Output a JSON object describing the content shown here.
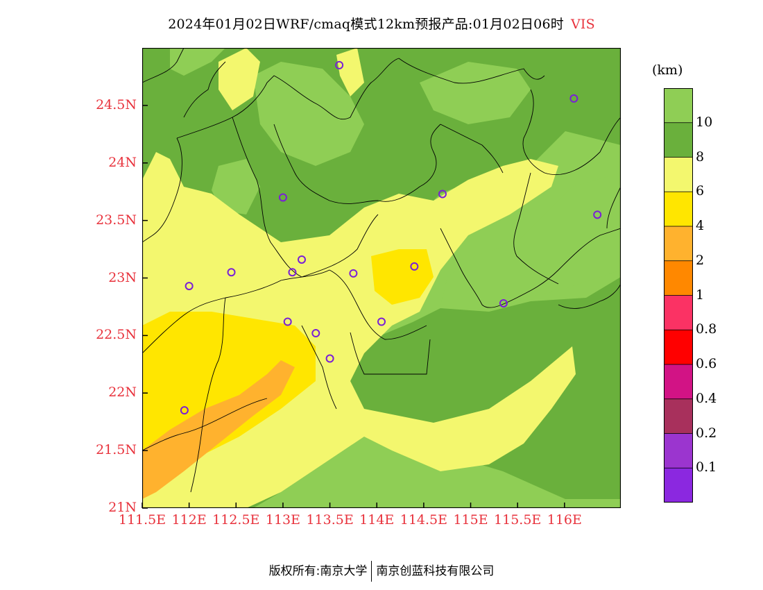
{
  "title": {
    "main": "2024年01月02日WRF/cmaq模式12km预报产品:01月02日06时",
    "variable": "VIS"
  },
  "axes": {
    "x_ticks": [
      "111.5E",
      "112E",
      "112.5E",
      "113E",
      "113.5E",
      "114E",
      "114.5E",
      "115E",
      "115.5E",
      "116E"
    ],
    "y_ticks": [
      "21N",
      "21.5N",
      "22N",
      "22.5N",
      "23N",
      "23.5N",
      "24N",
      "24.5N"
    ],
    "x_range": [
      111.5,
      116.6
    ],
    "y_range": [
      21.0,
      25.0
    ]
  },
  "legend": {
    "unit": "(km)",
    "labels": [
      "10",
      "8",
      "6",
      "4",
      "2",
      "1",
      "0.8",
      "0.6",
      "0.4",
      "0.2",
      "0.1"
    ],
    "colors": [
      "#8fce55",
      "#6ab03c",
      "#f3f76e",
      "#ffe600",
      "#ffb22e",
      "#ff8800",
      "#fb3264",
      "#ff0000",
      "#d21385",
      "#a8305c",
      "#9b35cf",
      "#8b28e0"
    ]
  },
  "map": {
    "colors": {
      "vis_gt10": "#8fce55",
      "vis_8_10": "#6ab03c",
      "vis_6_8": "#f3f76e",
      "vis_4_6": "#ffe600",
      "vis_2_4": "#ffb22e",
      "station_marker": "#7a1fd6",
      "boundary": "#000000"
    },
    "stations": [
      {
        "lon": 113.6,
        "lat": 24.85
      },
      {
        "lon": 116.1,
        "lat": 24.56
      },
      {
        "lon": 113.0,
        "lat": 23.7
      },
      {
        "lon": 114.7,
        "lat": 23.73
      },
      {
        "lon": 116.35,
        "lat": 23.55
      },
      {
        "lon": 112.45,
        "lat": 23.05
      },
      {
        "lon": 112.0,
        "lat": 22.93
      },
      {
        "lon": 113.1,
        "lat": 23.05
      },
      {
        "lon": 113.2,
        "lat": 23.16
      },
      {
        "lon": 113.75,
        "lat": 23.04
      },
      {
        "lon": 114.4,
        "lat": 23.1
      },
      {
        "lon": 115.35,
        "lat": 22.78
      },
      {
        "lon": 113.05,
        "lat": 22.62
      },
      {
        "lon": 113.35,
        "lat": 22.52
      },
      {
        "lon": 114.05,
        "lat": 22.62
      },
      {
        "lon": 113.5,
        "lat": 22.3
      },
      {
        "lon": 111.95,
        "lat": 21.85
      }
    ]
  },
  "footer": {
    "left": "版权所有:南京大学",
    "right": "南京创蓝科技有限公司"
  }
}
